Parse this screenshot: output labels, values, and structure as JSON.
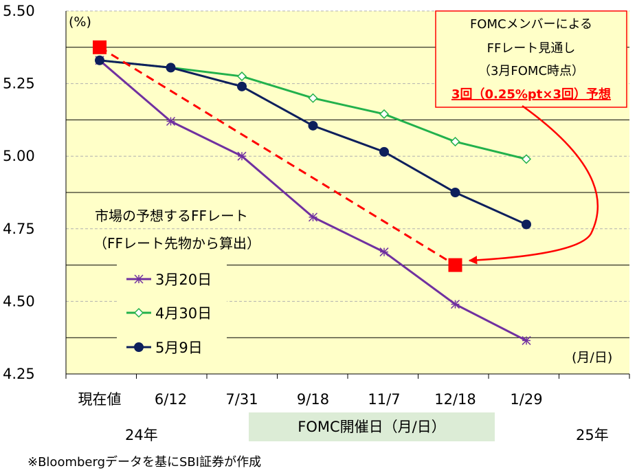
{
  "chart_data": {
    "type": "line",
    "y_unit": "(%)",
    "x_unit": "(月/日)",
    "ylim": [
      4.25,
      5.5
    ],
    "yticks": [
      "4.25",
      "4.50",
      "4.75",
      "5.00",
      "5.25",
      "5.50"
    ],
    "categories": [
      "現在値",
      "6/12",
      "7/31",
      "9/18",
      "11/7",
      "12/18",
      "1/29"
    ],
    "year_labels": [
      "24年",
      "25年"
    ],
    "x_caption": "FOMC開催日（月/日）",
    "legend_title": [
      "市場の予想するFFレート",
      "（FFレート先物から算出）"
    ],
    "series": [
      {
        "name": "3月20日",
        "color": "#7030a0",
        "marker": "star",
        "values": [
          5.33,
          5.12,
          5.0,
          4.79,
          4.67,
          4.49,
          4.365
        ]
      },
      {
        "name": "4月30日",
        "color": "#22b14c",
        "marker": "diamond",
        "values": [
          5.33,
          5.305,
          5.275,
          5.2,
          5.145,
          5.05,
          4.99
        ]
      },
      {
        "name": "5月9日",
        "color": "#0d1f5c",
        "marker": "circle",
        "values": [
          5.33,
          5.305,
          5.24,
          5.105,
          5.015,
          4.875,
          4.765
        ]
      }
    ],
    "fomc_projection": {
      "start": 5.375,
      "end": 4.625,
      "color": "#ff0000",
      "callout_lines": [
        "FOMCメンバーによる",
        "FFレート見通し",
        "（3月FOMC時点）"
      ],
      "callout_highlight": "3回（0.25%pt×3回）予想"
    },
    "grid": true,
    "background": "#ffffc8"
  },
  "footnote": "※Bloombergデータを基にSBI証券が作成"
}
